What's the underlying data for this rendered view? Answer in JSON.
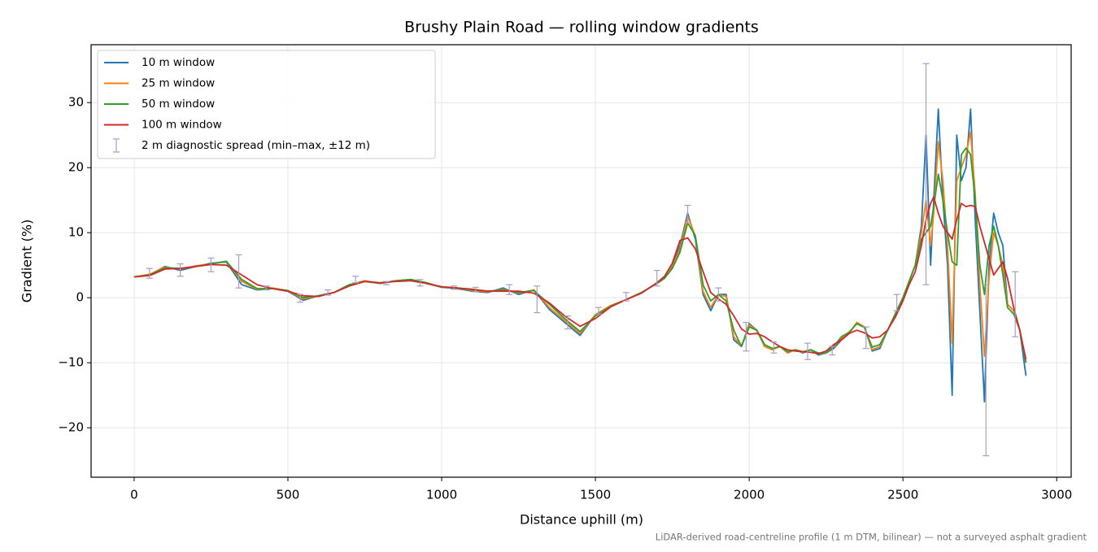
{
  "chart_data": {
    "type": "line",
    "title": "Brushy Plain Road — rolling window gradients",
    "x_label": "Distance uphill (m)",
    "y_label": "Gradient (%)",
    "annotation": "LiDAR-derived road-centreline profile (1 m DTM, bilinear) — not a surveyed asphalt gradient",
    "xlim": [
      -140,
      3047
    ],
    "ylim": [
      -27.6,
      38.9
    ],
    "xticks": [
      0,
      500,
      1000,
      1500,
      2000,
      2500,
      3000
    ],
    "yticks": [
      {
        "value": -20,
        "label": "−20"
      },
      {
        "value": -10,
        "label": "−10"
      },
      0,
      10,
      20,
      30
    ],
    "grid": true,
    "legend": "upper left",
    "x": [
      0,
      50,
      100,
      150,
      200,
      250,
      300,
      350,
      400,
      450,
      500,
      550,
      600,
      650,
      700,
      750,
      800,
      850,
      900,
      950,
      1000,
      1050,
      1100,
      1150,
      1200,
      1250,
      1300,
      1350,
      1400,
      1450,
      1500,
      1550,
      1600,
      1650,
      1700,
      1725,
      1750,
      1775,
      1800,
      1825,
      1850,
      1875,
      1900,
      1925,
      1950,
      1975,
      2000,
      2025,
      2050,
      2075,
      2100,
      2125,
      2150,
      2175,
      2200,
      2225,
      2250,
      2275,
      2300,
      2325,
      2350,
      2375,
      2400,
      2425,
      2450,
      2475,
      2500,
      2520,
      2540,
      2560,
      2575,
      2590,
      2600,
      2615,
      2630,
      2645,
      2660,
      2675,
      2690,
      2705,
      2720,
      2735,
      2750,
      2765,
      2780,
      2795,
      2810,
      2825,
      2840,
      2860,
      2880,
      2900
    ],
    "series": [
      {
        "name": "10 m window",
        "color": "#1f77b4",
        "values": [
          3.2,
          3.5,
          4.8,
          4.2,
          4.8,
          5.3,
          5.5,
          2.0,
          1.2,
          1.4,
          1.0,
          -0.4,
          0.3,
          0.8,
          2.0,
          2.6,
          2.2,
          2.6,
          2.8,
          2.2,
          1.6,
          1.4,
          1.0,
          0.8,
          1.5,
          0.5,
          1.2,
          -1.8,
          -3.8,
          -5.8,
          -2.6,
          -1.2,
          -0.3,
          0.8,
          2.2,
          3.0,
          4.8,
          8.0,
          13.0,
          9.0,
          0.5,
          -2.0,
          0.5,
          0.5,
          -6.5,
          -7.5,
          -4.0,
          -5.0,
          -7.5,
          -8.0,
          -7.5,
          -8.5,
          -8.0,
          -8.5,
          -8.0,
          -8.8,
          -8.5,
          -7.8,
          -6.5,
          -5.5,
          -3.8,
          -4.5,
          -8.2,
          -7.8,
          -5.0,
          -2.5,
          0,
          2.5,
          5.0,
          11.0,
          25.0,
          5.0,
          15.0,
          29.0,
          15.0,
          5.0,
          -15.0,
          25.0,
          18.0,
          20.0,
          29.0,
          12.0,
          -2.0,
          -16.0,
          5.0,
          13.0,
          10.0,
          8.0,
          -1.0,
          -2.0,
          -5.0,
          -12.0
        ]
      },
      {
        "name": "25 m window",
        "color": "#ff7f0e",
        "values": [
          3.2,
          3.6,
          4.7,
          4.4,
          4.9,
          5.2,
          5.6,
          2.5,
          1.3,
          1.5,
          1.1,
          -0.2,
          0.3,
          0.8,
          2.0,
          2.6,
          2.2,
          2.6,
          2.8,
          2.3,
          1.6,
          1.5,
          1.1,
          0.9,
          1.3,
          0.7,
          1.2,
          -1.5,
          -3.5,
          -5.5,
          -2.6,
          -1.2,
          -0.3,
          0.8,
          2.2,
          3.0,
          4.7,
          7.5,
          12.5,
          9.5,
          1.0,
          -1.5,
          0.5,
          0.2,
          -6.0,
          -7.5,
          -4.2,
          -5.0,
          -7.5,
          -8.0,
          -7.5,
          -8.5,
          -8.0,
          -8.4,
          -8.0,
          -8.6,
          -8.5,
          -7.6,
          -6.2,
          -5.5,
          -3.8,
          -4.5,
          -8.0,
          -7.5,
          -5.0,
          -2.5,
          0,
          2.5,
          5.0,
          10.0,
          15.0,
          8.0,
          13.0,
          24.0,
          18.0,
          8.0,
          -7.0,
          18.0,
          20.0,
          22.0,
          25.5,
          16.0,
          2.0,
          -9.0,
          3.0,
          10.0,
          8.0,
          5.0,
          -1.0,
          -2.0,
          -5.0,
          -10.0
        ]
      },
      {
        "name": "50 m window",
        "color": "#2ca02c",
        "values": [
          3.2,
          3.5,
          4.6,
          4.5,
          4.8,
          5.2,
          5.6,
          2.8,
          1.4,
          1.4,
          1.1,
          0,
          0.3,
          0.8,
          2.0,
          2.5,
          2.2,
          2.6,
          2.8,
          2.3,
          1.6,
          1.5,
          1.2,
          1.0,
          1.2,
          0.8,
          1.1,
          -1.0,
          -3.2,
          -5.2,
          -2.8,
          -1.3,
          -0.3,
          0.8,
          2.2,
          3.0,
          4.5,
          7.0,
          11.5,
          9.5,
          2.0,
          -0.5,
          0.5,
          -0.5,
          -5.0,
          -7.5,
          -4.5,
          -5.0,
          -7.2,
          -7.8,
          -7.5,
          -8.3,
          -8.0,
          -8.3,
          -8.0,
          -8.5,
          -8.5,
          -7.5,
          -6.0,
          -5.3,
          -4.0,
          -4.6,
          -7.6,
          -7.2,
          -5.0,
          -2.5,
          0,
          2.5,
          5.0,
          9.0,
          10.0,
          11.0,
          14.0,
          19.0,
          15.0,
          10.0,
          5.5,
          5.0,
          22.0,
          23.0,
          22.0,
          15.0,
          5.0,
          0.5,
          8.0,
          11.0,
          8.0,
          3.5,
          -1.5,
          -2.5,
          -5.0,
          -10.0
        ]
      },
      {
        "name": "100 m window",
        "color": "#d62728",
        "values": [
          3.2,
          3.4,
          4.4,
          4.5,
          4.8,
          5.1,
          5.0,
          3.5,
          2.0,
          1.4,
          1.0,
          0.3,
          0.2,
          0.8,
          1.8,
          2.5,
          2.3,
          2.5,
          2.6,
          2.2,
          1.7,
          1.5,
          1.3,
          1.0,
          1.0,
          1.0,
          0.7,
          -0.8,
          -2.8,
          -4.4,
          -3.2,
          -1.4,
          -0.3,
          0.7,
          2.3,
          3.3,
          5.3,
          8.8,
          9.2,
          7.5,
          4.0,
          0.8,
          -0.2,
          -1.0,
          -2.8,
          -4.8,
          -5.6,
          -5.5,
          -6.0,
          -6.8,
          -7.5,
          -8.0,
          -8.2,
          -8.3,
          -8.4,
          -8.6,
          -8.2,
          -7.2,
          -6.5,
          -5.5,
          -5.0,
          -5.4,
          -6.2,
          -6.0,
          -5.0,
          -3.0,
          -0.5,
          2.0,
          4.0,
          8.0,
          12.0,
          14.5,
          15.5,
          13.0,
          11.0,
          10.0,
          9.0,
          12.0,
          14.5,
          14.0,
          14.2,
          14.0,
          11.0,
          8.5,
          6.0,
          3.5,
          4.5,
          5.5,
          3.0,
          -1.5,
          -5.0,
          -9.5
        ]
      }
    ],
    "errorbars": {
      "name": "2 m diagnostic spread (min–max, ±12 m)",
      "color": "#a99cc9",
      "x": [
        50,
        150,
        250,
        340,
        430,
        540,
        630,
        720,
        820,
        930,
        1040,
        1110,
        1220,
        1310,
        1410,
        1510,
        1600,
        1700,
        1800,
        1900,
        1990,
        2080,
        2190,
        2270,
        2380,
        2480,
        2575,
        2770,
        2865
      ],
      "min": [
        3.0,
        3.3,
        4.0,
        1.5,
        1.2,
        -0.7,
        0.4,
        2.3,
        2.0,
        1.8,
        1.3,
        0.9,
        0.5,
        -2.3,
        -4.8,
        -2.5,
        -0.5,
        1.8,
        11.5,
        -0.5,
        -8.2,
        -8.5,
        -9.5,
        -8.8,
        -7.8,
        -2.0,
        2.0,
        -24.3,
        -6.0
      ],
      "max": [
        4.5,
        5.2,
        6.1,
        6.6,
        1.8,
        0.5,
        1.2,
        3.3,
        2.5,
        2.8,
        1.8,
        1.6,
        2.0,
        1.8,
        -2.8,
        -1.5,
        0.8,
        4.2,
        14.2,
        1.5,
        -3.8,
        -6.8,
        -7.0,
        -7.5,
        -4.5,
        0.5,
        36.0,
        2.0,
        4.0
      ]
    }
  }
}
